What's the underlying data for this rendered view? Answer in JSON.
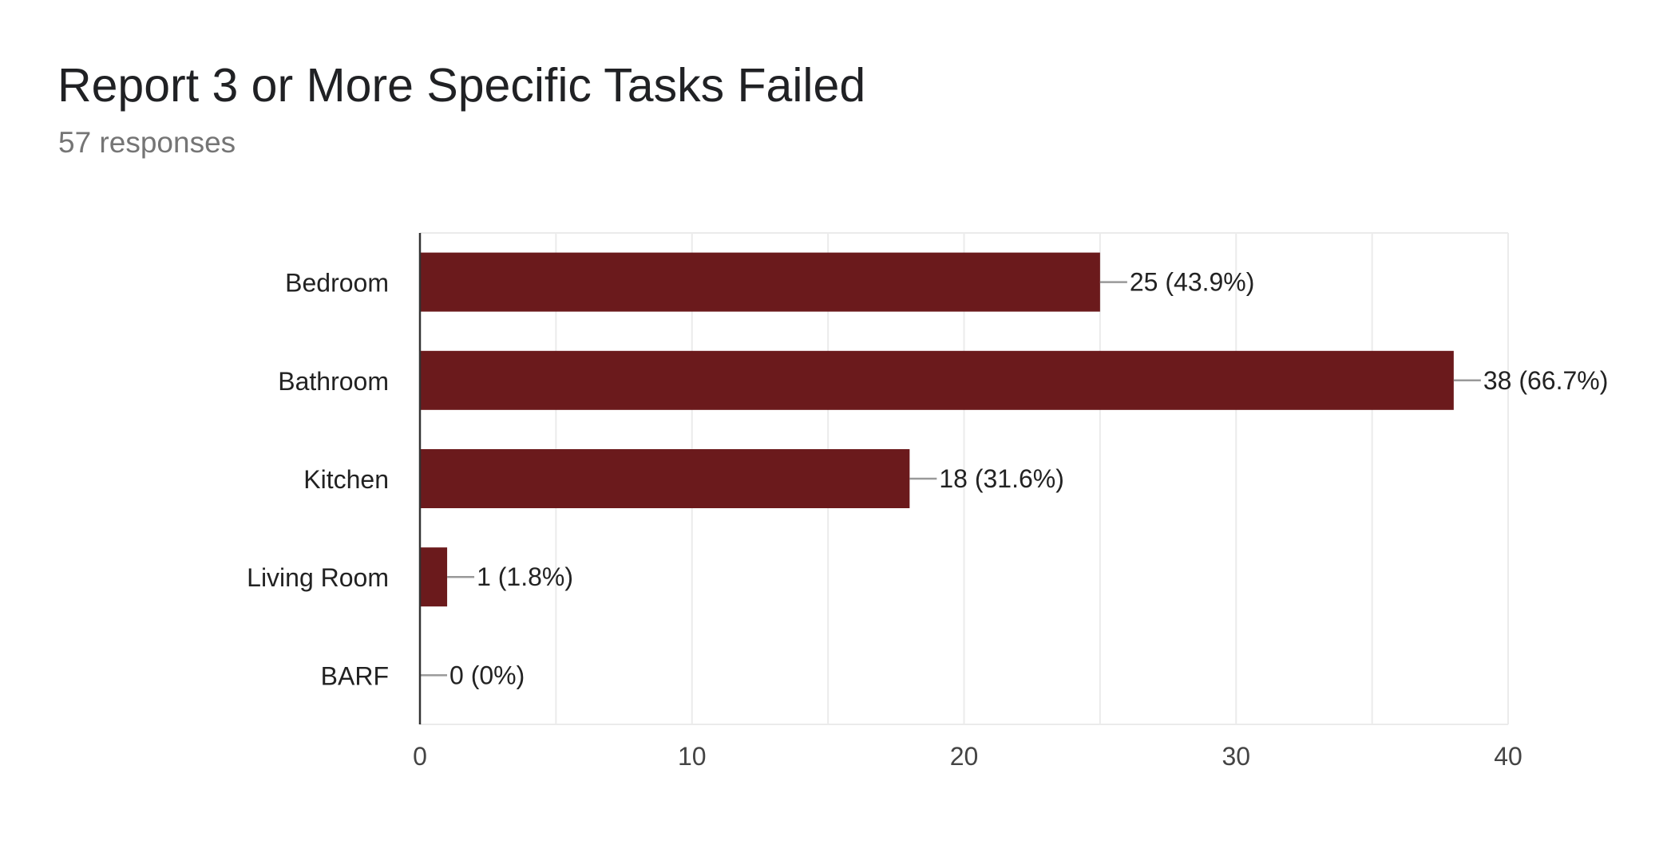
{
  "header": {
    "title": "Report 3 or More Specific Tasks Failed",
    "subtitle": "57 responses"
  },
  "chart_data": {
    "type": "bar",
    "orientation": "horizontal",
    "title": "Report 3 or More Specific Tasks Failed",
    "subtitle": "57 responses",
    "categories": [
      "Bedroom",
      "Bathroom",
      "Kitchen",
      "Living Room",
      "BARF"
    ],
    "values": [
      25,
      38,
      18,
      1,
      0
    ],
    "data_labels": [
      "25 (43.9%)",
      "38 (66.7%)",
      "18 (31.6%)",
      "1 (1.8%)",
      "0 (0%)"
    ],
    "xlim": [
      0,
      40
    ],
    "x_ticks": [
      0,
      10,
      20,
      30,
      40
    ],
    "xlabel": "",
    "ylabel": "",
    "grid": true,
    "legend": "none",
    "colors": {
      "bar": "#6b1a1c",
      "grid": "#ebebeb",
      "axis": "#333333",
      "leader": "#999999"
    }
  }
}
